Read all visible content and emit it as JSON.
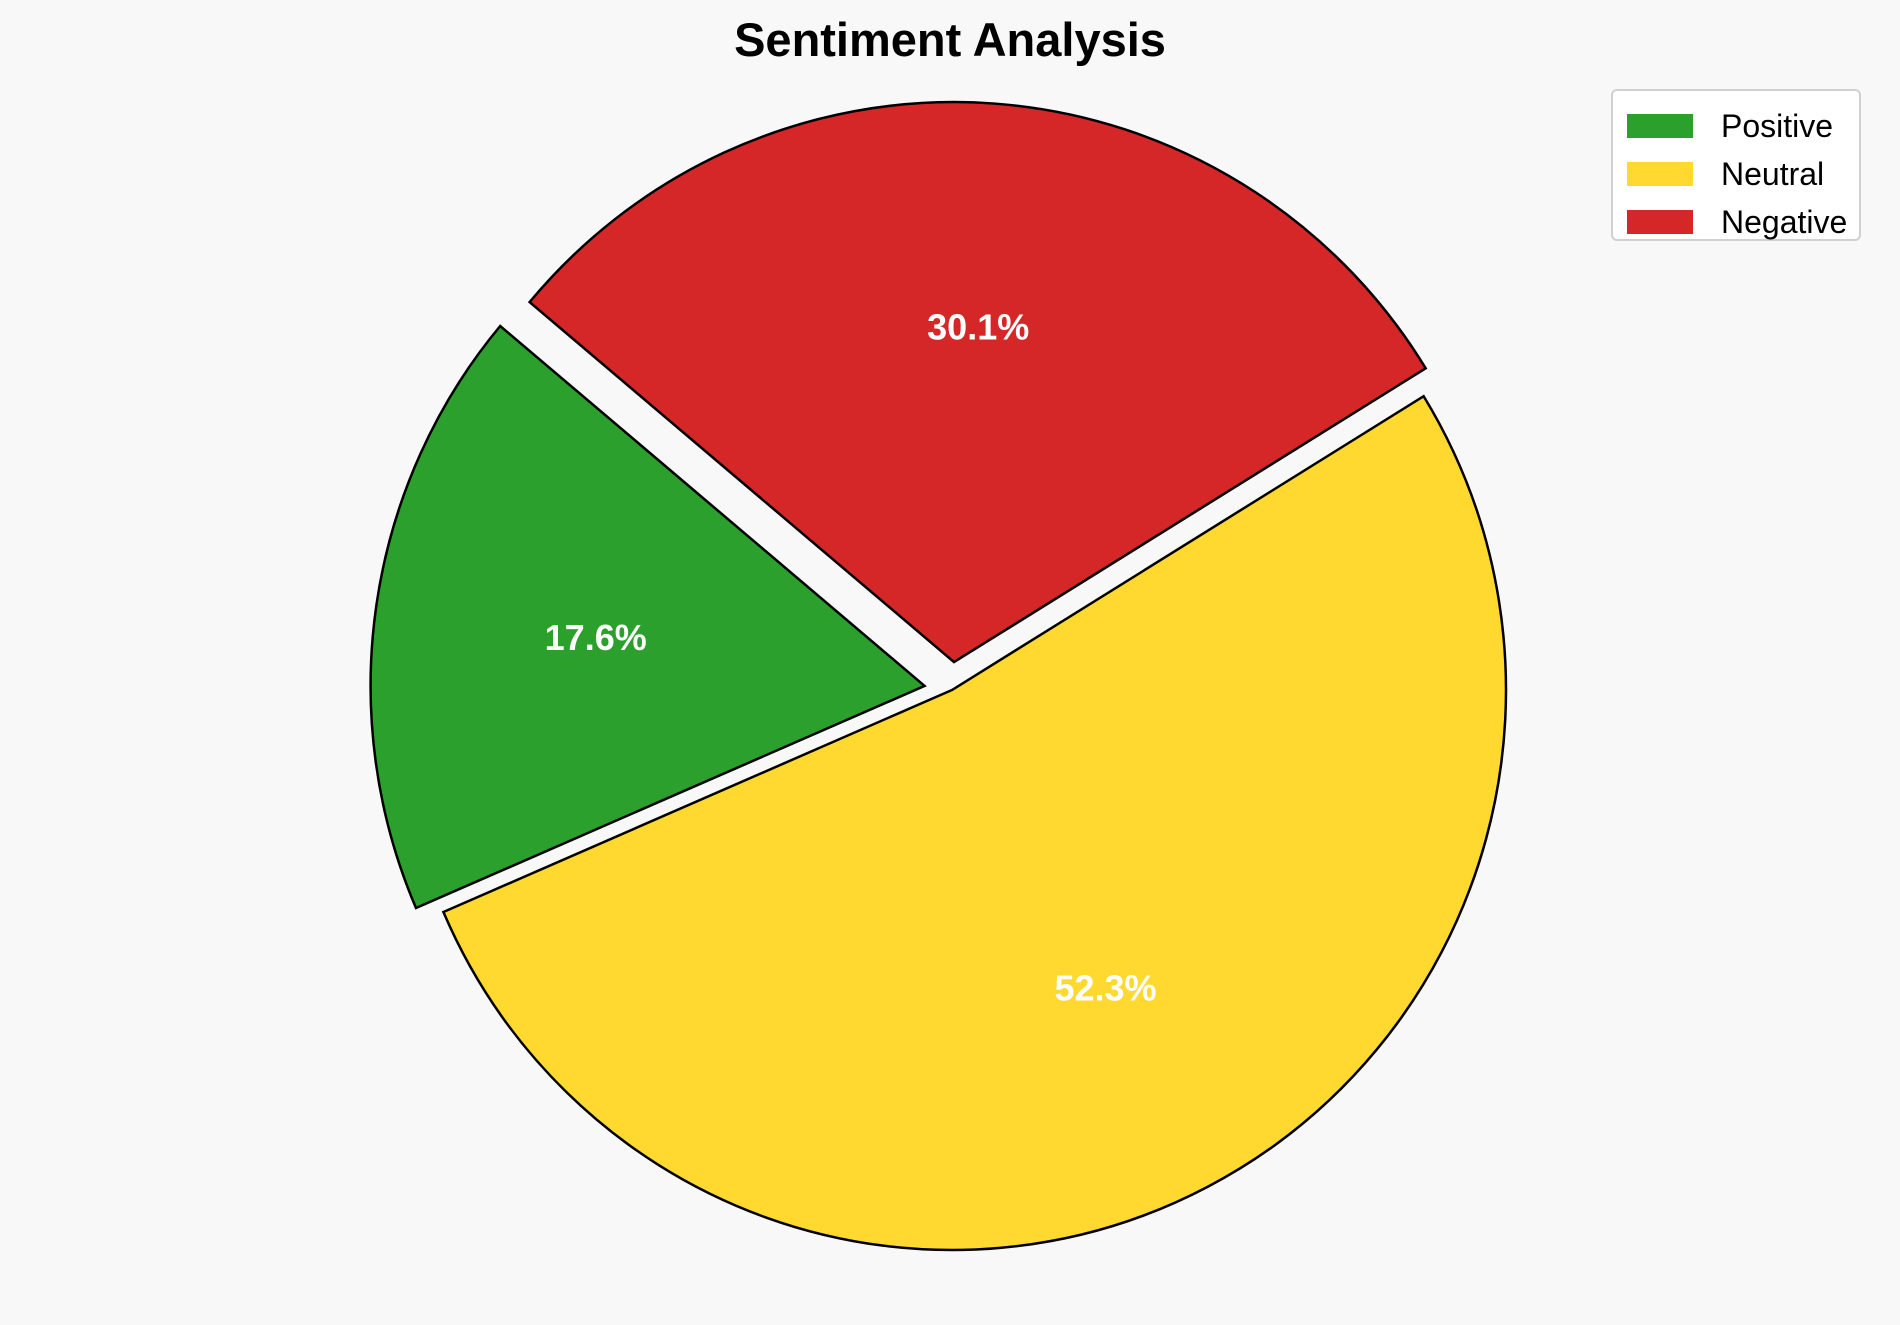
{
  "chart_data": {
    "type": "pie",
    "title": "Sentiment Analysis",
    "categories": [
      "Positive",
      "Neutral",
      "Negative"
    ],
    "values": [
      17.6,
      52.3,
      30.1
    ],
    "labels": [
      "17.6%",
      "52.3%",
      "30.1%"
    ],
    "colors": [
      "#2ca02c",
      "#ffd92f",
      "#d62728"
    ],
    "exploded": true,
    "legend_position": "top-right"
  }
}
